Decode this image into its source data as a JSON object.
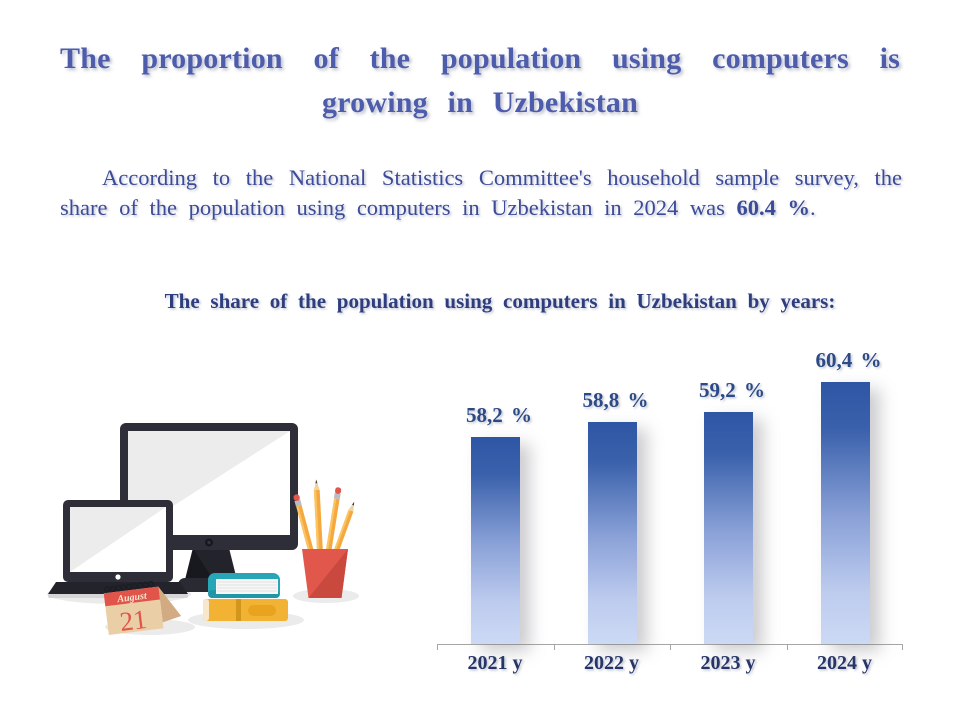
{
  "slide": {
    "title_line1": "The proportion of the population using computers is",
    "title_line2": "growing in Uzbekistan",
    "paragraph_line1": "According to the National Statistics Committee's household sample survey, the",
    "paragraph_line2_prefix": "share of the population using computers in Uzbekistan in 2024 was ",
    "paragraph_bold": "60.4 %",
    "paragraph_suffix": ".",
    "chart_heading": "The share of the population using computers in Uzbekistan by years:"
  },
  "chart_data": {
    "type": "bar",
    "categories": [
      "2021 y",
      "2022 y",
      "2023 y",
      "2024 y"
    ],
    "values": [
      58.2,
      58.8,
      59.2,
      60.4
    ],
    "value_labels": [
      "58,2 %",
      "58,8 %",
      "59,2 %",
      "60,4 %"
    ],
    "title": "The share of the population using computers in Uzbekistan by years:",
    "xlabel": "",
    "ylabel": "",
    "ylim": [
      49.9,
      62
    ],
    "grid": false,
    "legend": false,
    "bar_color_top": "#2e56a4",
    "bar_color_bottom": "#ccd9f5"
  },
  "illustration": {
    "calendar_month": "August",
    "calendar_day": "21"
  },
  "colors": {
    "title": "#4d5cab",
    "paragraph": "#3c4b98",
    "heading": "#2d3d7e",
    "value_label": "#2c4a86",
    "year_label": "#263568",
    "axis": "#a6a6a6"
  }
}
